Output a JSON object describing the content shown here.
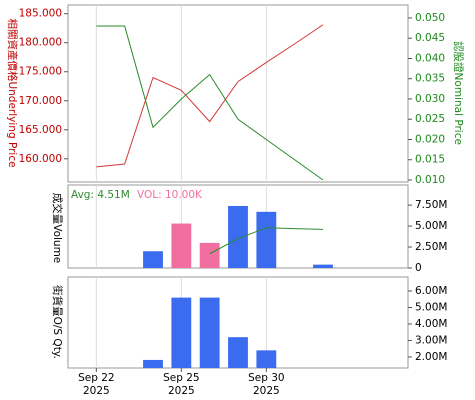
{
  "chart_data": [
    {
      "type": "line",
      "y_title": "相關資產價格Underlying Price",
      "y2_title": "認股證Nominal Price",
      "y_color": "#c00000",
      "y2_color": "#1e8a1e",
      "series": [
        {
          "name": "Underlying Price",
          "color": "#d03a3a",
          "values": [
            158.6,
            159.1,
            174.0,
            171.8,
            166.4,
            173.3,
            176.6,
            179.8,
            183.1,
            null,
            null,
            null
          ]
        },
        {
          "name": "Nominal Price",
          "color": "#2a8a2a",
          "axis": "y2",
          "values": [
            0.048,
            0.048,
            0.023,
            0.03,
            0.036,
            0.025,
            0.02,
            0.015,
            0.01,
            null,
            null,
            null
          ]
        }
      ],
      "ylim": [
        156,
        186.5
      ],
      "yticks": [
        {
          "value": 160,
          "label": "160.000"
        },
        {
          "value": 165,
          "label": "165.000"
        },
        {
          "value": 170,
          "label": "170.000"
        },
        {
          "value": 175,
          "label": "175.000"
        },
        {
          "value": 180,
          "label": "180.000"
        },
        {
          "value": 185,
          "label": "185.000"
        }
      ],
      "y2lim": [
        0.0095,
        0.0532
      ],
      "y2ticks": [
        {
          "value": 0.01,
          "label": "0.010"
        },
        {
          "value": 0.015,
          "label": "0.015"
        },
        {
          "value": 0.02,
          "label": "0.020"
        },
        {
          "value": 0.025,
          "label": "0.025"
        },
        {
          "value": 0.03,
          "label": "0.030"
        },
        {
          "value": 0.035,
          "label": "0.035"
        },
        {
          "value": 0.04,
          "label": "0.040"
        },
        {
          "value": 0.045,
          "label": "0.045"
        },
        {
          "value": 0.05,
          "label": "0.050"
        }
      ]
    },
    {
      "type": "bar",
      "y_title": "成交量Volume",
      "values": [
        null,
        null,
        2000000,
        5300000,
        3000000,
        7400000,
        6700000,
        null,
        400000,
        null,
        null,
        null
      ],
      "colors": [
        null,
        null,
        "#3b6cf0",
        "#f06fa0",
        "#f06fa0",
        "#3b6cf0",
        "#3b6cf0",
        null,
        "#3b6cf0",
        null,
        null,
        null
      ],
      "line": {
        "name": "Avg: 4.51M",
        "color": "#2e8b2e",
        "values": [
          null,
          null,
          null,
          null,
          1700000,
          3500000,
          4800000,
          4700000,
          4600000,
          null,
          null,
          null
        ]
      },
      "note": {
        "text": "VOL: 10.00K",
        "color": "#f06fa0"
      },
      "ylim": [
        0,
        9900000
      ],
      "yticks": [
        0,
        {
          "value": 2500000,
          "label": "2.50M"
        },
        {
          "value": 5000000,
          "label": "5.00M"
        },
        {
          "value": 7500000,
          "label": "7.50M"
        }
      ]
    },
    {
      "type": "bar",
      "y_title": "街貨量O/S Qty.",
      "color": "#3b6cf0",
      "values": [
        null,
        null,
        1820000,
        5600000,
        5600000,
        3200000,
        2400000,
        null,
        null,
        null,
        null,
        null
      ],
      "ylim": [
        1330000,
        6850000
      ],
      "yticks": [
        {
          "value": 2000000,
          "label": "2.00M"
        },
        {
          "value": 3000000,
          "label": "3.00M"
        },
        {
          "value": 4000000,
          "label": "4.00M"
        },
        {
          "value": 5000000,
          "label": "5.00M"
        },
        {
          "value": 6000000,
          "label": "6.00M"
        }
      ],
      "categories": [
        "Sep 22\n2025",
        null,
        null,
        "Sep 25\n2025",
        null,
        null,
        "Sep 30\n2025",
        null,
        null,
        null,
        null,
        null
      ]
    }
  ]
}
